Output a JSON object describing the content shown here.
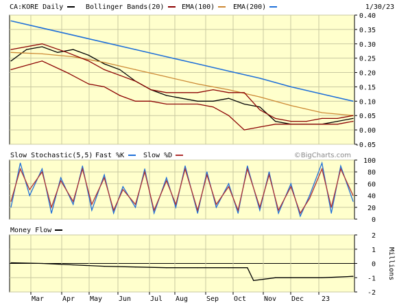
{
  "header": {
    "symbol": "CA:KORE Daily",
    "legend": [
      {
        "label": "Bollinger Bands(20)",
        "color": "#8b0000"
      },
      {
        "label": "EMA(100)",
        "color": "#cc8833"
      },
      {
        "label": "EMA(200)",
        "color": "#1e6fd9"
      }
    ],
    "date": "1/30/23"
  },
  "watermark": "©BigCharts.com",
  "colors": {
    "panel_bg": "#ffffcc",
    "price": "#000000",
    "bollinger": "#8b0000",
    "ema100": "#cc8833",
    "ema200": "#1e6fd9",
    "stoch_fast": "#1e6fd9",
    "stoch_slow": "#b03030",
    "money_flow": "#000000"
  },
  "x_axis": {
    "labels": [
      "Mar",
      "Apr",
      "May",
      "Jun",
      "Jul",
      "Aug",
      "Sep",
      "Oct",
      "Nov",
      "Dec",
      "23"
    ]
  },
  "panels": {
    "price": {
      "title": "",
      "y_labels": [
        "0.40",
        "0.35",
        "0.30",
        "0.25",
        "0.20",
        "0.15",
        "0.10",
        "0.05",
        "0.00",
        "-0.05"
      ]
    },
    "stoch": {
      "title": "Slow Stochastic(5,5)",
      "fast_label": "Fast %K",
      "slow_label": "Slow %D",
      "y_labels": [
        "100",
        "80",
        "60",
        "40",
        "20",
        "0"
      ]
    },
    "mflow": {
      "title": "Money Flow",
      "y_labels": [
        "2",
        "1",
        "0",
        "-1",
        "-2"
      ],
      "unit_label": "Millions"
    }
  },
  "chart_data": [
    {
      "type": "line",
      "title": "CA:KORE Daily",
      "x_unit": "trading-month",
      "ylim": [
        -0.05,
        0.4
      ],
      "x_ticks": [
        "Mar",
        "Apr",
        "May",
        "Jun",
        "Jul",
        "Aug",
        "Sep",
        "Oct",
        "Nov",
        "Dec",
        "23"
      ],
      "series": [
        {
          "name": "CA:KORE Daily",
          "kind": "price",
          "x": [
            0,
            0.5,
            1,
            1.5,
            2,
            2.5,
            3,
            3.5,
            4,
            4.5,
            5,
            5.5,
            6,
            6.5,
            7,
            7.5,
            8,
            8.5,
            9,
            9.5,
            10,
            10.5,
            11
          ],
          "y": [
            0.24,
            0.28,
            0.29,
            0.27,
            0.28,
            0.26,
            0.23,
            0.21,
            0.17,
            0.14,
            0.12,
            0.11,
            0.1,
            0.1,
            0.11,
            0.09,
            0.08,
            0.03,
            0.02,
            0.02,
            0.02,
            0.03,
            0.04
          ]
        },
        {
          "name": "EMA(100)",
          "kind": "ema100",
          "x": [
            0,
            1,
            2,
            3,
            4,
            5,
            6,
            7,
            8,
            9,
            10,
            11
          ],
          "y": [
            0.27,
            0.265,
            0.255,
            0.235,
            0.21,
            0.185,
            0.16,
            0.14,
            0.115,
            0.085,
            0.06,
            0.05
          ]
        },
        {
          "name": "EMA(200)",
          "kind": "ema200",
          "x": [
            0,
            1,
            2,
            3,
            4,
            5,
            6,
            7,
            8,
            9,
            10,
            11
          ],
          "y": [
            0.38,
            0.355,
            0.33,
            0.305,
            0.28,
            0.255,
            0.23,
            0.205,
            0.18,
            0.15,
            0.125,
            0.1
          ]
        },
        {
          "name": "Bollinger Bands(20)",
          "kind": "bb_upper",
          "x": [
            0,
            1,
            1.8,
            2.5,
            3,
            3.5,
            4,
            4.5,
            5,
            5.5,
            6,
            6.5,
            7,
            7.5,
            8,
            8.5,
            9,
            9.5,
            10,
            10.5,
            11
          ],
          "y": [
            0.28,
            0.3,
            0.27,
            0.24,
            0.21,
            0.19,
            0.17,
            0.14,
            0.13,
            0.13,
            0.13,
            0.14,
            0.13,
            0.13,
            0.07,
            0.04,
            0.03,
            0.03,
            0.04,
            0.04,
            0.05
          ]
        },
        {
          "name": "Bollinger Bands(20)",
          "kind": "bb_lower",
          "x": [
            0,
            1,
            1.8,
            2.5,
            3,
            3.5,
            4,
            4.5,
            5,
            5.5,
            6,
            6.5,
            7,
            7.5,
            8,
            8.5,
            9,
            9.5,
            10,
            10.5,
            11
          ],
          "y": [
            0.21,
            0.24,
            0.2,
            0.16,
            0.15,
            0.12,
            0.1,
            0.1,
            0.09,
            0.09,
            0.09,
            0.08,
            0.05,
            0.0,
            0.01,
            0.02,
            0.02,
            0.02,
            0.02,
            0.02,
            0.03
          ]
        }
      ]
    },
    {
      "type": "line",
      "title": "Slow Stochastic(5,5)",
      "ylim": [
        0,
        100
      ],
      "series": [
        {
          "name": "Fast %K",
          "kind": "fast",
          "x": [
            0,
            0.3,
            0.6,
            1,
            1.3,
            1.6,
            2,
            2.3,
            2.6,
            3,
            3.3,
            3.6,
            4,
            4.3,
            4.6,
            5,
            5.3,
            5.6,
            6,
            6.3,
            6.6,
            7,
            7.3,
            7.6,
            8,
            8.3,
            8.6,
            9,
            9.3,
            9.6,
            10,
            10.3,
            10.6,
            11
          ],
          "y": [
            20,
            95,
            40,
            85,
            10,
            70,
            25,
            90,
            15,
            75,
            10,
            55,
            20,
            85,
            10,
            70,
            20,
            90,
            10,
            80,
            20,
            60,
            10,
            90,
            15,
            80,
            10,
            60,
            5,
            40,
            95,
            10,
            90,
            30
          ]
        },
        {
          "name": "Slow %D",
          "kind": "slow",
          "x": [
            0,
            0.3,
            0.6,
            1,
            1.3,
            1.6,
            2,
            2.3,
            2.6,
            3,
            3.3,
            3.6,
            4,
            4.3,
            4.6,
            5,
            5.3,
            5.6,
            6,
            6.3,
            6.6,
            7,
            7.3,
            7.6,
            8,
            8.3,
            8.6,
            9,
            9.3,
            9.6,
            10,
            10.3,
            10.6,
            11
          ],
          "y": [
            30,
            85,
            50,
            80,
            20,
            65,
            30,
            85,
            25,
            70,
            15,
            50,
            25,
            80,
            15,
            65,
            25,
            85,
            15,
            75,
            25,
            55,
            15,
            85,
            20,
            75,
            15,
            55,
            10,
            35,
            85,
            20,
            85,
            40
          ]
        }
      ]
    },
    {
      "type": "line",
      "title": "Money Flow",
      "ylabel": "Millions",
      "ylim": [
        -2,
        2
      ],
      "series": [
        {
          "name": "Money Flow",
          "kind": "mflow",
          "x": [
            0,
            1,
            2,
            3,
            4,
            5,
            6,
            7,
            7.6,
            7.8,
            8.5,
            9,
            10,
            11
          ],
          "y": [
            0.05,
            0.0,
            -0.1,
            -0.2,
            -0.25,
            -0.3,
            -0.3,
            -0.3,
            -0.3,
            -1.2,
            -1.0,
            -1.0,
            -1.0,
            -0.9
          ]
        }
      ]
    }
  ]
}
